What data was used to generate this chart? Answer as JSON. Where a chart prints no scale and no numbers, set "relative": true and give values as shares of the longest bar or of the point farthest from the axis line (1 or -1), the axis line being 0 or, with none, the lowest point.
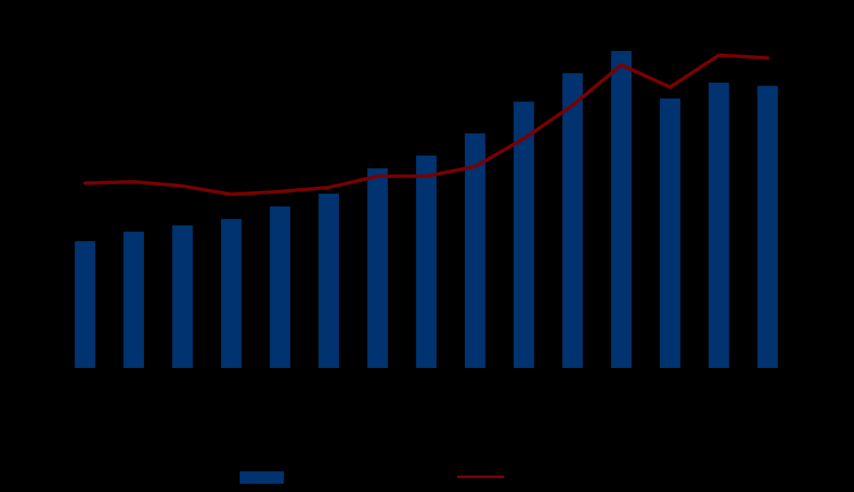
{
  "chart_data": [
    {
      "type": "bar",
      "relative": true,
      "categories": [
        null,
        null,
        null,
        null,
        null,
        null,
        null,
        null,
        null,
        null,
        null,
        null,
        null,
        null,
        null
      ],
      "color": "#00336f",
      "values": [
        0.4,
        0.43,
        0.45,
        0.47,
        0.51,
        0.55,
        0.63,
        0.67,
        0.74,
        0.84,
        0.93,
        1,
        0.85,
        0.9,
        0.89
      ]
    },
    {
      "type": "line",
      "relative": true,
      "categories": [
        null,
        null,
        null,
        null,
        null,
        null,
        null,
        null,
        null,
        null,
        null,
        null,
        null,
        null,
        null
      ],
      "color": "#7a0000",
      "values": [
        0.08,
        0.09,
        0.06,
        0,
        0.02,
        0.05,
        0.13,
        0.13,
        0.2,
        0.4,
        0.64,
        0.93,
        0.77,
        1,
        0.98
      ]
    }
  ]
}
